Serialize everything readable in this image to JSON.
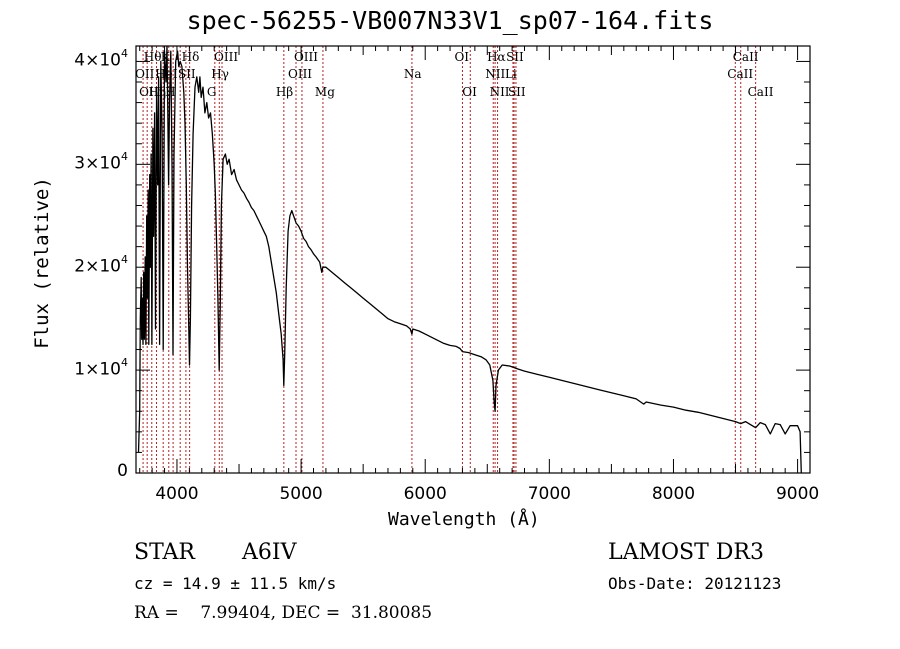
{
  "chart_data": {
    "type": "line",
    "title": "spec-56255-VB007N33V1_sp07-164.fits",
    "xlabel": "Wavelength (Å)",
    "ylabel": "Flux (relative)",
    "xlim": [
      3670,
      9100
    ],
    "ylim": [
      0,
      41500
    ],
    "grid": false,
    "x_ticks": [
      {
        "value": 4000,
        "label": "4000"
      },
      {
        "value": 5000,
        "label": "5000"
      },
      {
        "value": 6000,
        "label": "6000"
      },
      {
        "value": 7000,
        "label": "7000"
      },
      {
        "value": 8000,
        "label": "8000"
      },
      {
        "value": 9000,
        "label": "9000"
      }
    ],
    "y_ticks": [
      {
        "value": 0,
        "mantissa": "0",
        "exponent": ""
      },
      {
        "value": 10000,
        "mantissa": "1×10",
        "exponent": "4"
      },
      {
        "value": 20000,
        "mantissa": "2×10",
        "exponent": "4"
      },
      {
        "value": 30000,
        "mantissa": "3×10",
        "exponent": "4"
      },
      {
        "value": 40000,
        "mantissa": "4×10",
        "exponent": "4"
      }
    ],
    "series": [
      {
        "name": "spectrum",
        "color": "#000000",
        "points": [
          [
            3690,
            2000
          ],
          [
            3700,
            6000
          ],
          [
            3705,
            15000
          ],
          [
            3712,
            19000
          ],
          [
            3716,
            13000
          ],
          [
            3720,
            17000
          ],
          [
            3726,
            12500
          ],
          [
            3732,
            19500
          ],
          [
            3738,
            13000
          ],
          [
            3744,
            21000
          ],
          [
            3750,
            12500
          ],
          [
            3756,
            25000
          ],
          [
            3762,
            17000
          ],
          [
            3768,
            27500
          ],
          [
            3773,
            12500
          ],
          [
            3780,
            29000
          ],
          [
            3786,
            20000
          ],
          [
            3792,
            31000
          ],
          [
            3798,
            12500
          ],
          [
            3806,
            33500
          ],
          [
            3812,
            23000
          ],
          [
            3820,
            35000
          ],
          [
            3827,
            14000
          ],
          [
            3836,
            37000
          ],
          [
            3845,
            28000
          ],
          [
            3852,
            38500
          ],
          [
            3860,
            12500
          ],
          [
            3870,
            40000
          ],
          [
            3880,
            33000
          ],
          [
            3889,
            12000
          ],
          [
            3900,
            41000
          ],
          [
            3912,
            38000
          ],
          [
            3920,
            41500
          ],
          [
            3925,
            36000
          ],
          [
            3933,
            28000
          ],
          [
            3940,
            36000
          ],
          [
            3950,
            41000
          ],
          [
            3960,
            30000
          ],
          [
            3968,
            11500
          ],
          [
            3976,
            31000
          ],
          [
            3990,
            40000
          ],
          [
            4005,
            41000
          ],
          [
            4015,
            39500
          ],
          [
            4026,
            40000
          ],
          [
            4040,
            39500
          ],
          [
            4055,
            37000
          ],
          [
            4065,
            34000
          ],
          [
            4075,
            28000
          ],
          [
            4085,
            20000
          ],
          [
            4095,
            14000
          ],
          [
            4101,
            10500
          ],
          [
            4108,
            15000
          ],
          [
            4118,
            26000
          ],
          [
            4130,
            33000
          ],
          [
            4145,
            37500
          ],
          [
            4160,
            38500
          ],
          [
            4175,
            37000
          ],
          [
            4185,
            38500
          ],
          [
            4195,
            36500
          ],
          [
            4210,
            37500
          ],
          [
            4225,
            35000
          ],
          [
            4240,
            36000
          ],
          [
            4255,
            34500
          ],
          [
            4270,
            35000
          ],
          [
            4285,
            33000
          ],
          [
            4300,
            30000
          ],
          [
            4310,
            27000
          ],
          [
            4320,
            22000
          ],
          [
            4330,
            17000
          ],
          [
            4340,
            10000
          ],
          [
            4348,
            16000
          ],
          [
            4358,
            26000
          ],
          [
            4372,
            30500
          ],
          [
            4390,
            31000
          ],
          [
            4405,
            30000
          ],
          [
            4420,
            30500
          ],
          [
            4440,
            29000
          ],
          [
            4460,
            29500
          ],
          [
            4480,
            28500
          ],
          [
            4500,
            28000
          ],
          [
            4520,
            27500
          ],
          [
            4540,
            27200
          ],
          [
            4560,
            26700
          ],
          [
            4580,
            26300
          ],
          [
            4600,
            25800
          ],
          [
            4620,
            25500
          ],
          [
            4640,
            25000
          ],
          [
            4660,
            24500
          ],
          [
            4680,
            24000
          ],
          [
            4700,
            23500
          ],
          [
            4720,
            23000
          ],
          [
            4740,
            22000
          ],
          [
            4760,
            20500
          ],
          [
            4780,
            19000
          ],
          [
            4800,
            17500
          ],
          [
            4820,
            15500
          ],
          [
            4840,
            13500
          ],
          [
            4855,
            11000
          ],
          [
            4861,
            8500
          ],
          [
            4868,
            11500
          ],
          [
            4880,
            18000
          ],
          [
            4895,
            23500
          ],
          [
            4910,
            25000
          ],
          [
            4925,
            25500
          ],
          [
            4940,
            25000
          ],
          [
            4960,
            24300
          ],
          [
            4980,
            24000
          ],
          [
            5000,
            23500
          ],
          [
            5020,
            22800
          ],
          [
            5040,
            22500
          ],
          [
            5060,
            22000
          ],
          [
            5080,
            21700
          ],
          [
            5100,
            21300
          ],
          [
            5120,
            21000
          ],
          [
            5150,
            20500
          ],
          [
            5167,
            19500
          ],
          [
            5175,
            20000
          ],
          [
            5200,
            20000
          ],
          [
            5250,
            19500
          ],
          [
            5300,
            19000
          ],
          [
            5350,
            18500
          ],
          [
            5400,
            18000
          ],
          [
            5450,
            17500
          ],
          [
            5500,
            17000
          ],
          [
            5550,
            16500
          ],
          [
            5600,
            16000
          ],
          [
            5650,
            15500
          ],
          [
            5700,
            15000
          ],
          [
            5750,
            14700
          ],
          [
            5800,
            14500
          ],
          [
            5850,
            14300
          ],
          [
            5880,
            14000
          ],
          [
            5893,
            13500
          ],
          [
            5900,
            14000
          ],
          [
            5950,
            13800
          ],
          [
            6000,
            13500
          ],
          [
            6050,
            13200
          ],
          [
            6100,
            12900
          ],
          [
            6150,
            12600
          ],
          [
            6200,
            12400
          ],
          [
            6250,
            12300
          ],
          [
            6280,
            12100
          ],
          [
            6300,
            11800
          ],
          [
            6350,
            11700
          ],
          [
            6400,
            11500
          ],
          [
            6450,
            11300
          ],
          [
            6490,
            11000
          ],
          [
            6520,
            10500
          ],
          [
            6545,
            9000
          ],
          [
            6555,
            7000
          ],
          [
            6563,
            6000
          ],
          [
            6570,
            8500
          ],
          [
            6590,
            10000
          ],
          [
            6620,
            10500
          ],
          [
            6680,
            10400
          ],
          [
            6750,
            10100
          ],
          [
            6800,
            9900
          ],
          [
            6900,
            9600
          ],
          [
            7000,
            9300
          ],
          [
            7100,
            9000
          ],
          [
            7200,
            8700
          ],
          [
            7300,
            8400
          ],
          [
            7400,
            8100
          ],
          [
            7500,
            7800
          ],
          [
            7600,
            7500
          ],
          [
            7700,
            7200
          ],
          [
            7760,
            6700
          ],
          [
            7780,
            6900
          ],
          [
            7900,
            6600
          ],
          [
            8000,
            6400
          ],
          [
            8100,
            6100
          ],
          [
            8200,
            5900
          ],
          [
            8300,
            5600
          ],
          [
            8400,
            5300
          ],
          [
            8500,
            5000
          ],
          [
            8542,
            4800
          ],
          [
            8580,
            5000
          ],
          [
            8620,
            4700
          ],
          [
            8662,
            4400
          ],
          [
            8700,
            4900
          ],
          [
            8740,
            4700
          ],
          [
            8780,
            3800
          ],
          [
            8820,
            4800
          ],
          [
            8860,
            4700
          ],
          [
            8900,
            3800
          ],
          [
            8940,
            4600
          ],
          [
            9000,
            4600
          ],
          [
            9020,
            4000
          ],
          [
            9030,
            0
          ]
        ]
      }
    ],
    "emission_lines": [
      {
        "wavelength": 3727,
        "label": "OII",
        "row": 2
      },
      {
        "wavelength": 3760,
        "label": "OIII",
        "row": 3
      },
      {
        "wavelength": 3797,
        "label": "Hθ",
        "row": 1
      },
      {
        "wavelength": 3835,
        "label": "Hη",
        "row": 3
      },
      {
        "wavelength": 3889,
        "label": "HeI",
        "row": 2
      },
      {
        "wavelength": 3934,
        "label": "K",
        "row": 1
      },
      {
        "wavelength": 3969,
        "label": "H",
        "row": 3
      },
      {
        "wavelength": 4026,
        "label": "HeI",
        "row": 0
      },
      {
        "wavelength": 4072,
        "label": "SII",
        "row": 2
      },
      {
        "wavelength": 4102,
        "label": "Hδ",
        "row": 1
      },
      {
        "wavelength": 4305,
        "label": "G",
        "row": 3
      },
      {
        "wavelength": 4341,
        "label": "Hγ",
        "row": 2
      },
      {
        "wavelength": 4363,
        "label": "OIII",
        "row": 1
      },
      {
        "wavelength": 4861,
        "label": "Hβ",
        "row": 3
      },
      {
        "wavelength": 4959,
        "label": "OIII",
        "row": 2
      },
      {
        "wavelength": 5007,
        "label": "OIII",
        "row": 1
      },
      {
        "wavelength": 5176,
        "label": "Mg",
        "row": 3
      },
      {
        "wavelength": 5893,
        "label": "Na",
        "row": 2
      },
      {
        "wavelength": 6300,
        "label": "OI",
        "row": 1
      },
      {
        "wavelength": 6363,
        "label": "OI",
        "row": 3
      },
      {
        "wavelength": 6548,
        "label": "NII",
        "row": 2
      },
      {
        "wavelength": 6563,
        "label": "Hα",
        "row": 1
      },
      {
        "wavelength": 6583,
        "label": "NII",
        "row": 3
      },
      {
        "wavelength": 6707,
        "label": "Li",
        "row": 2
      },
      {
        "wavelength": 6716,
        "label": "SII",
        "row": 1
      },
      {
        "wavelength": 6731,
        "label": "SII",
        "row": 3
      },
      {
        "wavelength": 8498,
        "label": "CaII",
        "row": 2
      },
      {
        "wavelength": 8542,
        "label": "CaII",
        "row": 1
      },
      {
        "wavelength": 8662,
        "label": "CaII",
        "row": 3
      }
    ],
    "line_color": "#b22222"
  },
  "info": {
    "object_type": "STAR",
    "subclass": "A6IV",
    "redshift_text": "cz = 14.9 ± 11.5 km/s",
    "coords_text": "RA =    7.99404, DEC =  31.80085",
    "survey": "LAMOST DR3",
    "obs_date_text": "Obs-Date: 20121123"
  }
}
